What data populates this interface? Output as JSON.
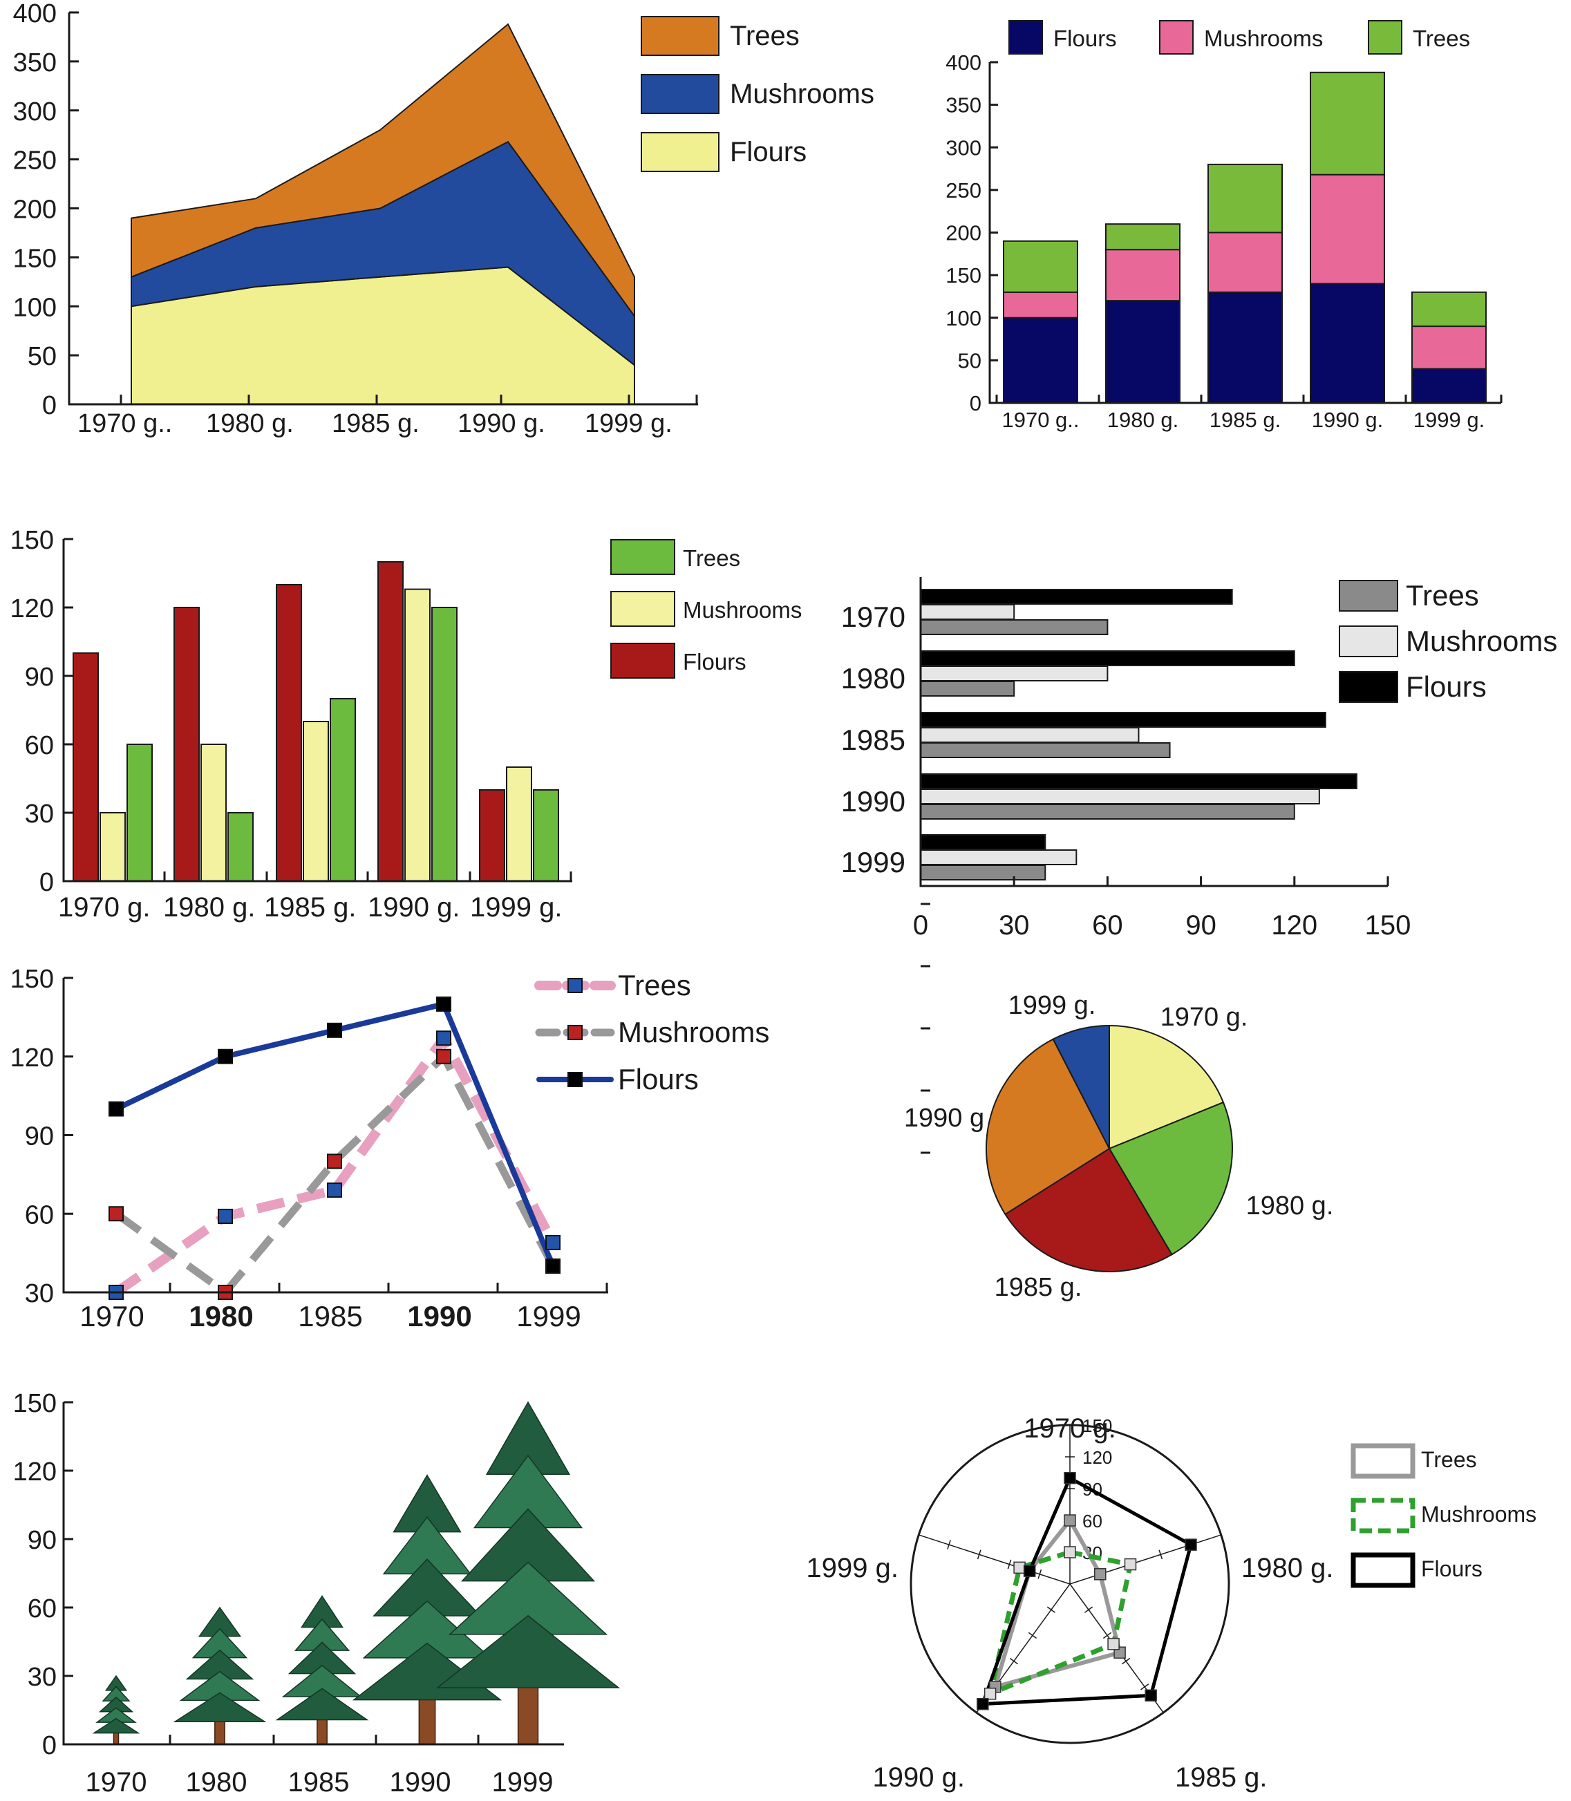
{
  "chart_data": [
    {
      "id": "stacked-area",
      "type": "area",
      "stacked": true,
      "categories": [
        "1970 g..",
        "1980 g.",
        "1985 g.",
        "1990 g.",
        "1999 g."
      ],
      "series": [
        {
          "name": "Flours",
          "values": [
            100,
            120,
            130,
            140,
            40
          ],
          "color": "#f0f090"
        },
        {
          "name": "Mushrooms",
          "values": [
            30,
            60,
            70,
            128,
            50
          ],
          "color": "#224b9e"
        },
        {
          "name": "Trees",
          "values": [
            60,
            30,
            80,
            120,
            40
          ],
          "color": "#d67a22"
        }
      ],
      "yticks": [
        "0",
        "50",
        "100",
        "150",
        "200",
        "250",
        "300",
        "350",
        "400"
      ],
      "ylim": [
        0,
        400
      ],
      "legend": [
        "Trees",
        "Mushrooms",
        "Flours"
      ],
      "legend_position": "top-right"
    },
    {
      "id": "stacked-bar",
      "type": "bar",
      "stacked": true,
      "categories": [
        "1970 g..",
        "1980 g.",
        "1985 g.",
        "1990 g.",
        "1999 g."
      ],
      "series": [
        {
          "name": "Flours",
          "values": [
            100,
            120,
            130,
            140,
            40
          ],
          "color": "#070766"
        },
        {
          "name": "Mushrooms",
          "values": [
            30,
            60,
            70,
            128,
            50
          ],
          "color": "#e86898"
        },
        {
          "name": "Trees",
          "values": [
            60,
            30,
            80,
            120,
            40
          ],
          "color": "#7aba3a"
        }
      ],
      "yticks": [
        "0",
        "50",
        "100",
        "150",
        "200",
        "250",
        "300",
        "350",
        "400"
      ],
      "ylim": [
        0,
        400
      ],
      "legend": [
        "Flours",
        "Mushrooms",
        "Trees"
      ],
      "legend_position": "top"
    },
    {
      "id": "grouped-bar",
      "type": "bar",
      "categories": [
        "1970 g.",
        "1980 g.",
        "1985 g.",
        "1990 g.",
        "1999 g."
      ],
      "series": [
        {
          "name": "Flours",
          "values": [
            100,
            120,
            130,
            140,
            40
          ],
          "color": "#a81a1a"
        },
        {
          "name": "Mushrooms",
          "values": [
            30,
            60,
            70,
            128,
            50
          ],
          "color": "#f2f2a0"
        },
        {
          "name": "Trees",
          "values": [
            60,
            30,
            80,
            120,
            40
          ],
          "color": "#6dbb3e"
        }
      ],
      "yticks": [
        "0",
        "30",
        "60",
        "90",
        "120",
        "150"
      ],
      "ylim": [
        0,
        150
      ],
      "legend": [
        "Trees",
        "Mushrooms",
        "Flours"
      ],
      "legend_position": "top-right"
    },
    {
      "id": "horizontal-bar",
      "type": "bar",
      "orientation": "horizontal",
      "categories": [
        "1970",
        "1980",
        "1985",
        "1990",
        "1999"
      ],
      "series": [
        {
          "name": "Flours",
          "values": [
            100,
            120,
            130,
            140,
            40
          ],
          "color": "#000000"
        },
        {
          "name": "Mushrooms",
          "values": [
            30,
            60,
            70,
            128,
            50
          ],
          "color": "#e6e6e6"
        },
        {
          "name": "Trees",
          "values": [
            60,
            30,
            80,
            120,
            40
          ],
          "color": "#8a8a8a"
        }
      ],
      "xticks": [
        "0",
        "30",
        "60",
        "90",
        "120",
        "150"
      ],
      "xlim": [
        0,
        150
      ],
      "legend": [
        "Trees",
        "Mushrooms",
        "Flours"
      ],
      "legend_position": "top-right"
    },
    {
      "id": "line",
      "type": "line",
      "categories": [
        "1970",
        "1980",
        "1985",
        "1990",
        "1999"
      ],
      "bold_categories": [
        "1980",
        "1990"
      ],
      "series": [
        {
          "name": "Trees",
          "values": [
            30,
            59,
            69,
            127,
            49
          ],
          "color": "#e8a0c0",
          "marker_color": "#2255aa",
          "dashed": true
        },
        {
          "name": "Mushrooms",
          "values": [
            60,
            30,
            80,
            120,
            40
          ],
          "color": "#999999",
          "marker_color": "#bb2222",
          "dashed": true
        },
        {
          "name": "Flours",
          "values": [
            100,
            120,
            130,
            140,
            40
          ],
          "color": "#1a3a99",
          "marker_color": "#000000",
          "dashed": false
        }
      ],
      "yticks": [
        "30",
        "60",
        "90",
        "120",
        "150"
      ],
      "ylim": [
        30,
        150
      ],
      "legend": [
        "Trees",
        "Mushrooms",
        "Flours"
      ],
      "legend_position": "top-right"
    },
    {
      "id": "pie",
      "type": "pie",
      "slices": [
        {
          "label": "1970 g.",
          "value": 100,
          "color": "#f0f090"
        },
        {
          "label": "1980 g.",
          "value": 120,
          "color": "#6dbb3e"
        },
        {
          "label": "1985 g.",
          "value": 130,
          "color": "#a81a1a"
        },
        {
          "label": "1990 g",
          "value": 140,
          "color": "#d67a22"
        },
        {
          "label": "1999 g.",
          "value": 40,
          "color": "#224b9e"
        }
      ]
    },
    {
      "id": "pictogram",
      "type": "bar",
      "style": "pictogram-trees",
      "categories": [
        "1970",
        "1980",
        "1985",
        "1990",
        "1999"
      ],
      "values": [
        30,
        60,
        65,
        118,
        150
      ],
      "yticks": [
        "0",
        "30",
        "60",
        "90",
        "120",
        "150"
      ],
      "ylim": [
        0,
        150
      ]
    },
    {
      "id": "radar",
      "type": "radar",
      "axes": [
        "1970 g.",
        "1980 g.",
        "1985 g.",
        "1990 g.",
        "1999 g."
      ],
      "rticks": [
        "30",
        "60",
        "90",
        "120",
        "150"
      ],
      "rlim": [
        0,
        150
      ],
      "series": [
        {
          "name": "Trees",
          "values": [
            60,
            30,
            80,
            120,
            40
          ],
          "color": "#999999",
          "marker_color": "#999999",
          "dashed": false
        },
        {
          "name": "Mushrooms",
          "values": [
            30,
            60,
            70,
            128,
            50
          ],
          "color": "#2ea02e",
          "marker_color": "#dddddd",
          "dashed": true
        },
        {
          "name": "Flours",
          "values": [
            100,
            120,
            130,
            140,
            40
          ],
          "color": "#000000",
          "marker_color": "#000000",
          "dashed": false
        }
      ],
      "legend": [
        "Trees",
        "Mushrooms",
        "Flours"
      ],
      "legend_position": "top-right"
    }
  ]
}
